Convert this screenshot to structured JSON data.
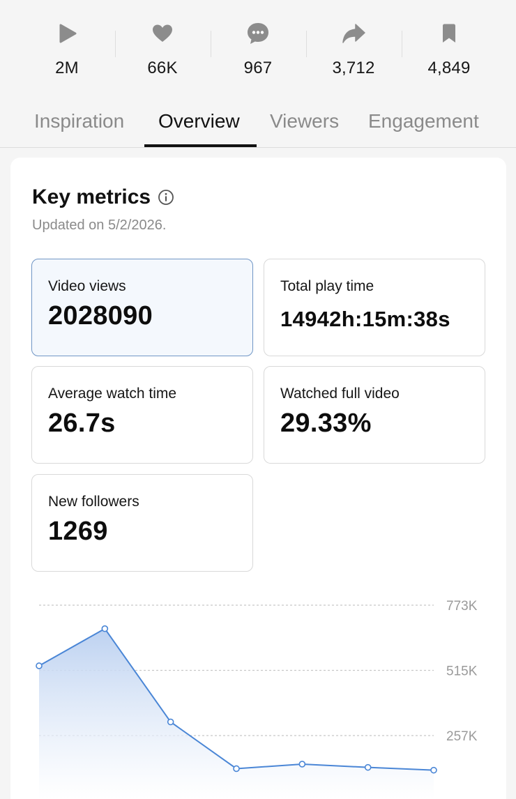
{
  "stats": [
    {
      "icon": "play-icon",
      "value": "2M"
    },
    {
      "icon": "heart-icon",
      "value": "66K"
    },
    {
      "icon": "comment-icon",
      "value": "967"
    },
    {
      "icon": "share-icon",
      "value": "3,712"
    },
    {
      "icon": "bookmark-icon",
      "value": "4,849"
    }
  ],
  "tabs": [
    {
      "label": "Inspiration",
      "active": false
    },
    {
      "label": "Overview",
      "active": true
    },
    {
      "label": "Viewers",
      "active": false
    },
    {
      "label": "Engagement",
      "active": false
    }
  ],
  "key_metrics": {
    "title": "Key metrics",
    "info_icon": "info-icon",
    "updated": "Updated on 5/2/2026.",
    "cards": [
      {
        "label": "Video views",
        "value": "2028090",
        "selected": true
      },
      {
        "label": "Total play time",
        "value": "14942h:15m:38s",
        "selected": false
      },
      {
        "label": "Average watch time",
        "value": "26.7s",
        "selected": false
      },
      {
        "label": "Watched full video",
        "value": "29.33%",
        "selected": false
      },
      {
        "label": "New followers",
        "value": "1269",
        "selected": false
      }
    ]
  },
  "colors": {
    "accent": "#4a86d6",
    "selected_border": "#6f95c5",
    "selected_bg": "#f4f8fd"
  },
  "chart_data": {
    "type": "area",
    "title": "",
    "xlabel": "",
    "ylabel": "",
    "y_ticks": [
      {
        "value": 773000,
        "label": "773K"
      },
      {
        "value": 515000,
        "label": "515K"
      },
      {
        "value": 257000,
        "label": "257K"
      }
    ],
    "ylim": [
      0,
      773000
    ],
    "grid": true,
    "series": [
      {
        "values": [
          533000,
          680000,
          311000,
          126000,
          144000,
          131000,
          120000
        ]
      }
    ]
  }
}
